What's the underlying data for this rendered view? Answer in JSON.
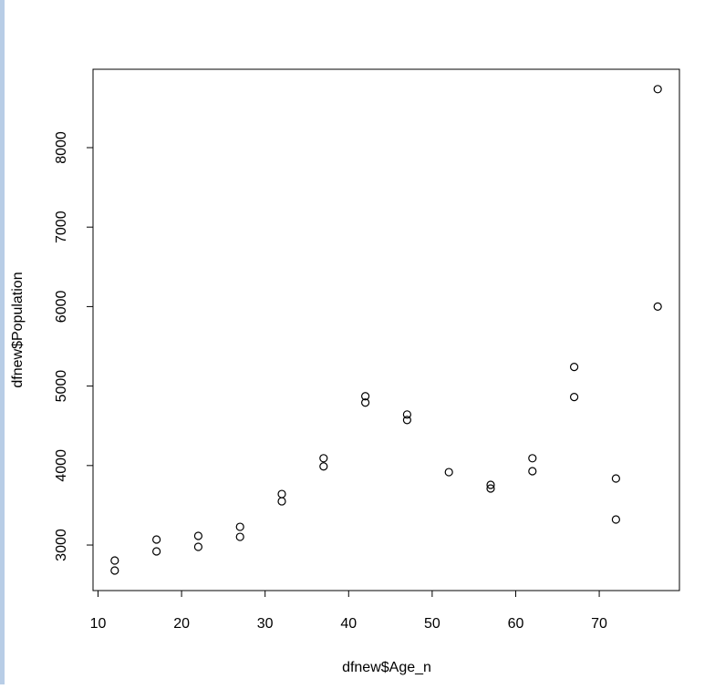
{
  "chart_data": {
    "type": "scatter",
    "x_label": "dfnew$Age_n",
    "y_label": "dfnew$Population",
    "x": [
      12,
      12,
      17,
      17,
      22,
      22,
      27,
      27,
      32,
      32,
      37,
      37,
      42,
      42,
      47,
      47,
      52,
      57,
      57,
      62,
      62,
      67,
      67,
      72,
      72,
      77,
      77
    ],
    "values": [
      2805,
      2679,
      3069,
      2920,
      3115,
      2977,
      3229,
      3103,
      3642,
      3550,
      4092,
      3989,
      4872,
      4792,
      4642,
      4573,
      3917,
      3757,
      3711,
      4092,
      3929,
      5241,
      4862,
      3837,
      3321,
      8736,
      6000
    ],
    "color": "#000000",
    "xlim": [
      9.4,
      79.6
    ],
    "ylim": [
      2427,
      8986
    ],
    "xticks": [
      10,
      20,
      30,
      40,
      50,
      60,
      70
    ],
    "yticks": [
      3000,
      4000,
      5000,
      6000,
      7000,
      8000
    ],
    "grid": false
  }
}
